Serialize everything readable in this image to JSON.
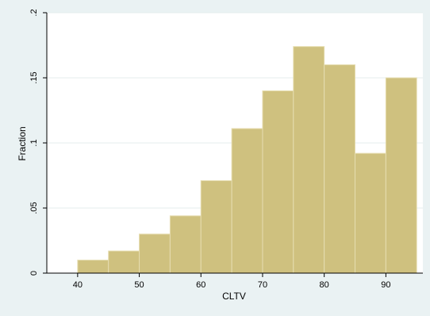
{
  "chart_data": {
    "type": "bar",
    "title": "",
    "xlabel": "CLTV",
    "ylabel": "Fraction",
    "bin_edges": [
      40,
      45,
      50,
      55,
      60,
      65,
      70,
      75,
      80,
      85,
      90,
      95
    ],
    "values": [
      0.01,
      0.017,
      0.03,
      0.044,
      0.071,
      0.111,
      0.14,
      0.174,
      0.16,
      0.092,
      0.15
    ],
    "xlim": [
      35,
      96
    ],
    "ylim": [
      0,
      0.2
    ],
    "x_ticks": [
      40,
      50,
      60,
      70,
      80,
      90
    ],
    "x_tick_labels": [
      "40",
      "50",
      "60",
      "70",
      "80",
      "90"
    ],
    "y_ticks": [
      0,
      0.05,
      0.1,
      0.15,
      0.2
    ],
    "y_tick_labels": [
      "0",
      ".05",
      ".1",
      ".15",
      ".2"
    ],
    "grid": "horizontal",
    "legend": "none",
    "colors": {
      "background": "#eaf2f3",
      "plot_area": "#ffffff",
      "bar_fill": "#cfc17f",
      "bar_edge": "#e6ddb0",
      "grid": "#e4eded",
      "axis": "#000000"
    }
  }
}
